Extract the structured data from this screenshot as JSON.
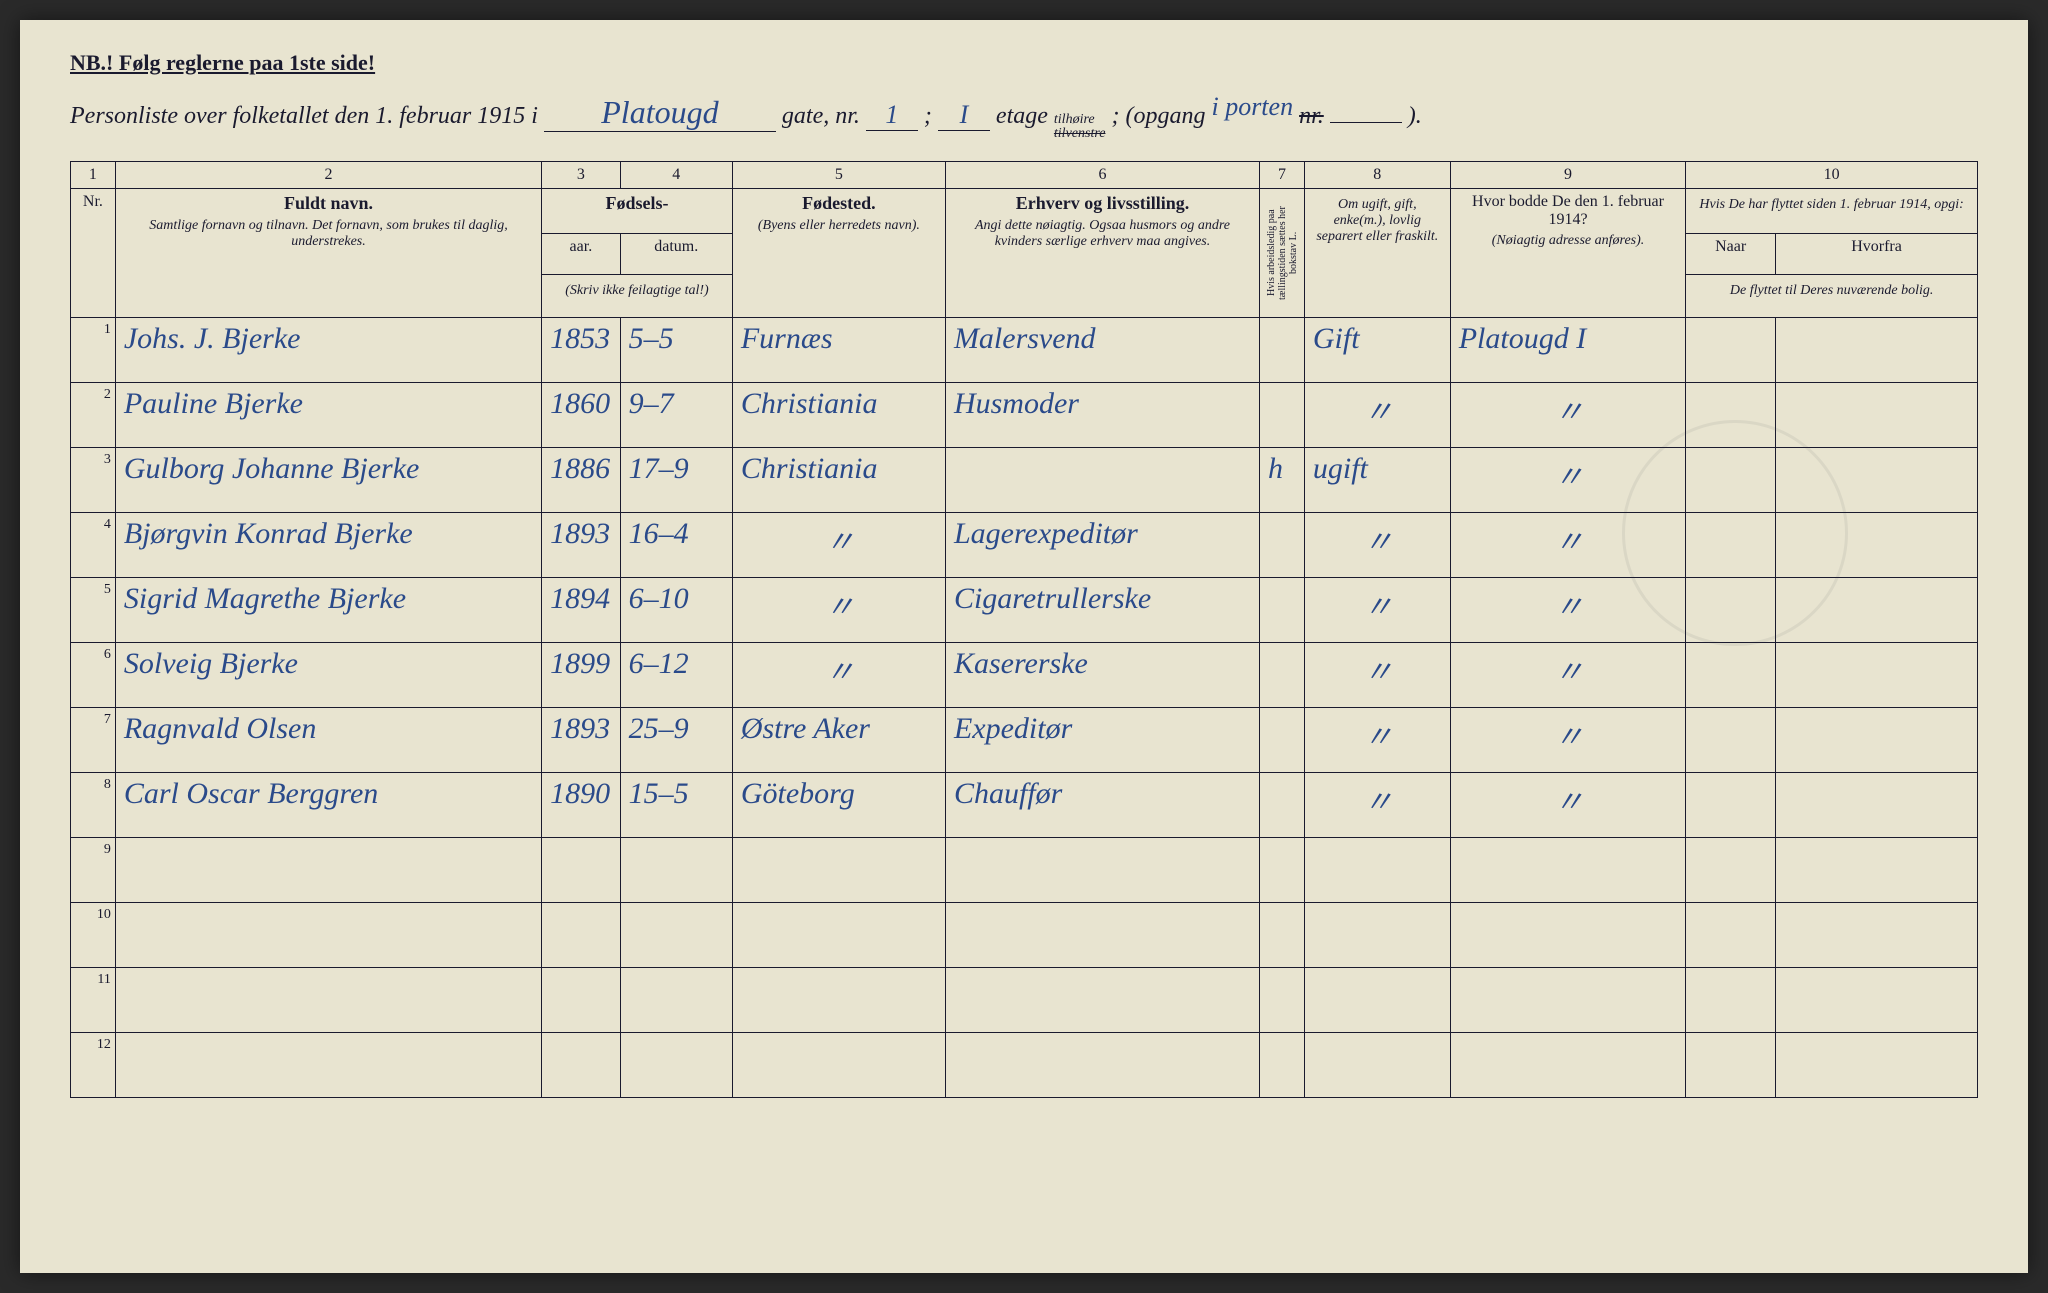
{
  "header": {
    "nb": "NB.! Følg reglerne paa 1ste side!",
    "title_prefix": "Personliste over folketallet den 1. februar 1915 i",
    "street_hand": "Platougd",
    "gate_label": "gate, nr.",
    "gate_nr": "1",
    "semicolon": ";",
    "etage_hand": "I",
    "etage_label": "etage",
    "tilhoire": "tilhøire",
    "tilvenstre": "tilvenstre",
    "opgang_label": "; (opgang",
    "opgang_hand": "i porten",
    "nr_label": "nr.",
    "close": ")."
  },
  "columns": {
    "c1": "1",
    "c2": "2",
    "c3": "3",
    "c4": "4",
    "c5": "5",
    "c6": "6",
    "c7": "7",
    "c8": "8",
    "c9": "9",
    "c10": "10",
    "nr": "Nr.",
    "fuldt_navn": "Fuldt navn.",
    "fuldt_sub": "Samtlige fornavn og tilnavn. Det fornavn, som brukes til daglig, understrekes.",
    "fodsels": "Fødsels-",
    "aar": "aar.",
    "datum": "datum.",
    "fodsels_sub": "(Skriv ikke feilagtige tal!)",
    "fodested": "Fødested.",
    "fodested_sub": "(Byens eller herredets navn).",
    "erhverv": "Erhverv og livsstilling.",
    "erhverv_sub": "Angi dette nøiagtig. Ogsaa husmors og andre kvinders særlige erhverv maa angives.",
    "col7_vert": "Hvis arbeidsledig paa tællingstiden sættes her bokstav L.",
    "col8": "Om ugift, gift, enke(m.), lovlig separert eller fraskilt.",
    "col9_hdr": "Hvor bodde De den 1. februar 1914?",
    "col9_sub": "(Nøiagtig adresse anføres).",
    "col10_hdr": "Hvis De har flyttet siden 1. februar 1914, opgi:",
    "col10_naar": "Naar",
    "col10_hvorfra": "Hvorfra",
    "col10_sub": "De flyttet til Deres nuværende bolig."
  },
  "rows": [
    {
      "nr": "1",
      "name": "Johs. J. Bjerke",
      "aar": "1853",
      "datum": "5–5",
      "sted": "Furnæs",
      "erhverv": "Malersvend",
      "c7": "",
      "status": "Gift",
      "addr": "Platougd I",
      "naar": "",
      "hvorfra": ""
    },
    {
      "nr": "2",
      "name": "Pauline Bjerke",
      "aar": "1860",
      "datum": "9–7",
      "sted": "Christiania",
      "erhverv": "Husmoder",
      "c7": "",
      "status": "〃",
      "addr": "〃",
      "naar": "",
      "hvorfra": ""
    },
    {
      "nr": "3",
      "name": "Gulborg Johanne Bjerke",
      "aar": "1886",
      "datum": "17–9",
      "sted": "Christiania",
      "erhverv": "",
      "c7": "h",
      "status": "ugift",
      "addr": "〃",
      "naar": "",
      "hvorfra": ""
    },
    {
      "nr": "4",
      "name": "Bjørgvin Konrad Bjerke",
      "aar": "1893",
      "datum": "16–4",
      "sted": "〃",
      "erhverv": "Lagerexpeditør",
      "c7": "",
      "status": "〃",
      "addr": "〃",
      "naar": "",
      "hvorfra": ""
    },
    {
      "nr": "5",
      "name": "Sigrid Magrethe Bjerke",
      "aar": "1894",
      "datum": "6–10",
      "sted": "〃",
      "erhverv": "Cigaretrullerske",
      "c7": "",
      "status": "〃",
      "addr": "〃",
      "naar": "",
      "hvorfra": ""
    },
    {
      "nr": "6",
      "name": "Solveig Bjerke",
      "aar": "1899",
      "datum": "6–12",
      "sted": "〃",
      "erhverv": "Kasererske",
      "c7": "",
      "status": "〃",
      "addr": "〃",
      "naar": "",
      "hvorfra": ""
    },
    {
      "nr": "7",
      "name": "Ragnvald Olsen",
      "aar": "1893",
      "datum": "25–9",
      "sted": "Østre Aker",
      "erhverv": "Expeditør",
      "c7": "",
      "status": "〃",
      "addr": "〃",
      "naar": "",
      "hvorfra": ""
    },
    {
      "nr": "8",
      "name": "Carl Oscar Berggren",
      "aar": "1890",
      "datum": "15–5",
      "sted": "Göteborg",
      "erhverv": "Chauffør",
      "c7": "",
      "status": "〃",
      "addr": "〃",
      "naar": "",
      "hvorfra": ""
    },
    {
      "nr": "9",
      "name": "",
      "aar": "",
      "datum": "",
      "sted": "",
      "erhverv": "",
      "c7": "",
      "status": "",
      "addr": "",
      "naar": "",
      "hvorfra": ""
    },
    {
      "nr": "10",
      "name": "",
      "aar": "",
      "datum": "",
      "sted": "",
      "erhverv": "",
      "c7": "",
      "status": "",
      "addr": "",
      "naar": "",
      "hvorfra": ""
    },
    {
      "nr": "11",
      "name": "",
      "aar": "",
      "datum": "",
      "sted": "",
      "erhverv": "",
      "c7": "",
      "status": "",
      "addr": "",
      "naar": "",
      "hvorfra": ""
    },
    {
      "nr": "12",
      "name": "",
      "aar": "",
      "datum": "",
      "sted": "",
      "erhverv": "",
      "c7": "",
      "status": "",
      "addr": "",
      "naar": "",
      "hvorfra": ""
    }
  ],
  "colors": {
    "paper": "#e8e4d0",
    "ink_print": "#1a1a2e",
    "ink_hand": "#2a4a8a"
  }
}
